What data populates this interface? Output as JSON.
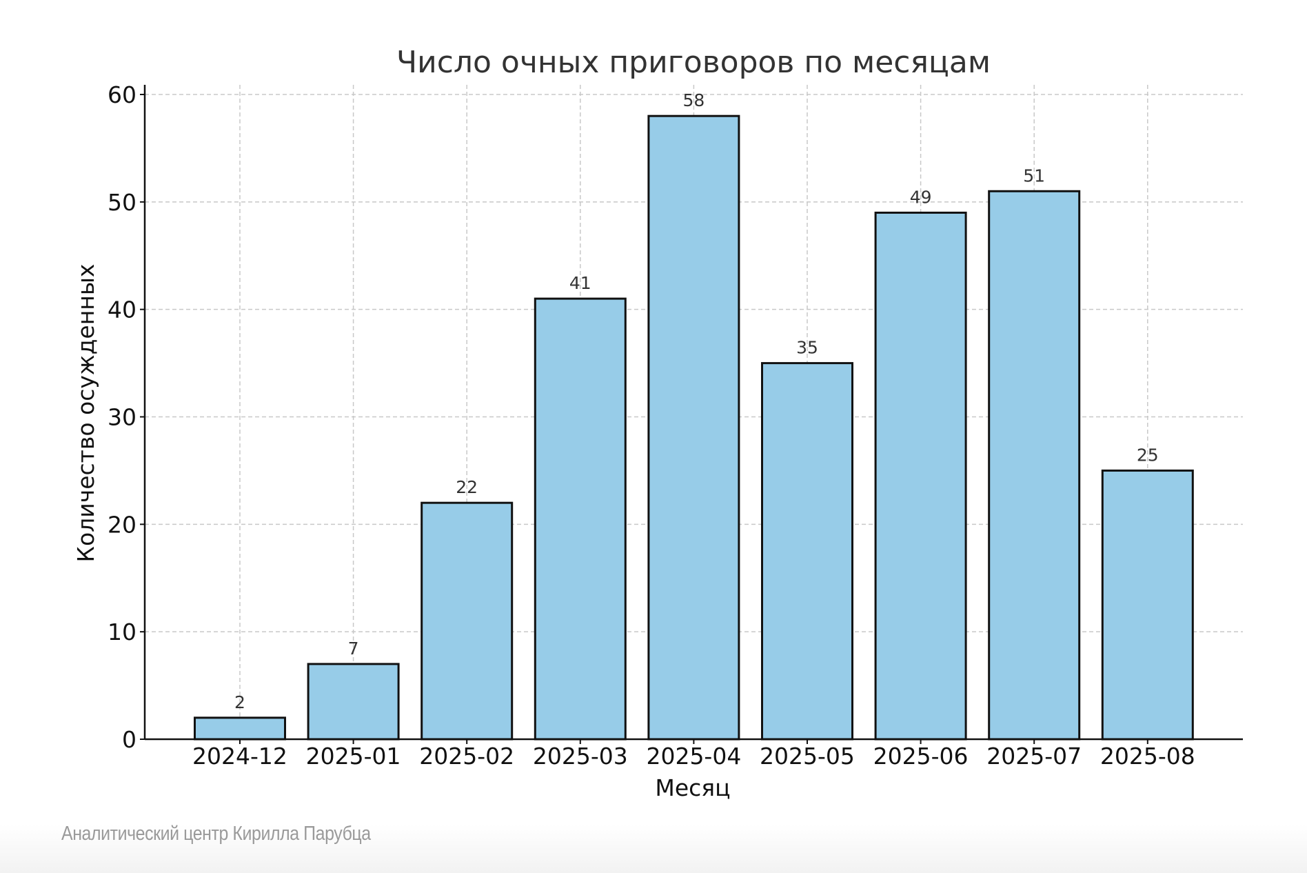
{
  "chart_data": {
    "type": "bar",
    "title": "Число очных приговоров по месяцам",
    "xlabel": "Месяц",
    "ylabel": "Количество осужденных",
    "categories": [
      "2024-12",
      "2025-01",
      "2025-02",
      "2025-03",
      "2025-04",
      "2025-05",
      "2025-06",
      "2025-07",
      "2025-08"
    ],
    "values": [
      2,
      7,
      22,
      41,
      58,
      35,
      49,
      51,
      25
    ],
    "data_labels": [
      "2",
      "7",
      "22",
      "41",
      "58",
      "35",
      "49",
      "51",
      "25"
    ],
    "yticks": [
      0,
      10,
      20,
      30,
      40,
      50,
      60
    ],
    "ylim": [
      0,
      60.9
    ],
    "grid": true,
    "colors": {
      "bar_fill": "#97cce8",
      "bar_edge": "#111111",
      "grid": "#c8c8c8",
      "text": "#333333"
    }
  },
  "footer": {
    "credit": "Аналитический центр Кирилла Парубца"
  }
}
